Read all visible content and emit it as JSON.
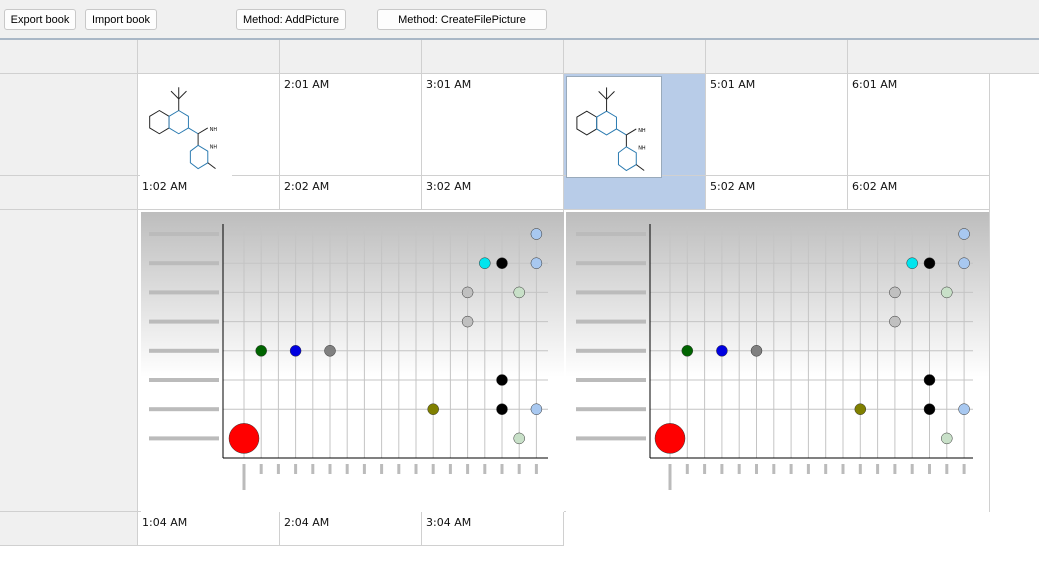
{
  "toolbar": {
    "export": "Export book",
    "import": "Import book",
    "add_picture": "Method: AddPicture",
    "create_file_picture": "Method: CreateFilePicture"
  },
  "cells": {
    "r1": [
      "",
      "2:01 AM",
      "3:01 AM",
      "",
      "5:01 AM",
      "6:01 AM"
    ],
    "r2": [
      "1:02 AM",
      "2:02 AM",
      "3:02 AM",
      "",
      "5:02 AM",
      "6:02 AM"
    ],
    "r4": [
      "1:04 AM",
      "2:04 AM",
      "3:04 AM"
    ]
  },
  "selected_cell": {
    "row": 1,
    "column": 4
  },
  "chart_picture": {
    "type": "scatter",
    "points": [
      {
        "row": 0,
        "col": 17,
        "color": "#a8c8f0"
      },
      {
        "row": 1,
        "col": 14,
        "color": "#00e5ee"
      },
      {
        "row": 1,
        "col": 15,
        "color": "#000000"
      },
      {
        "row": 1,
        "col": 17,
        "color": "#a8c8f0"
      },
      {
        "row": 2,
        "col": 13,
        "color": "#c0c0c0"
      },
      {
        "row": 2,
        "col": 16,
        "color": "#c8e0c8"
      },
      {
        "row": 3,
        "col": 13,
        "color": "#c0c0c0"
      },
      {
        "row": 4,
        "col": 1,
        "color": "#006400"
      },
      {
        "row": 4,
        "col": 3,
        "color": "#0000e0"
      },
      {
        "row": 4,
        "col": 5,
        "color": "#808080"
      },
      {
        "row": 5,
        "col": 15,
        "color": "#000000"
      },
      {
        "row": 6,
        "col": 11,
        "color": "#808000"
      },
      {
        "row": 6,
        "col": 15,
        "color": "#000000"
      },
      {
        "row": 6,
        "col": 17,
        "color": "#a8c8f0"
      },
      {
        "row": 7,
        "col": 0,
        "color": "#ff0000",
        "big": true
      },
      {
        "row": 7,
        "col": 16,
        "color": "#c8e0c8"
      }
    ]
  }
}
